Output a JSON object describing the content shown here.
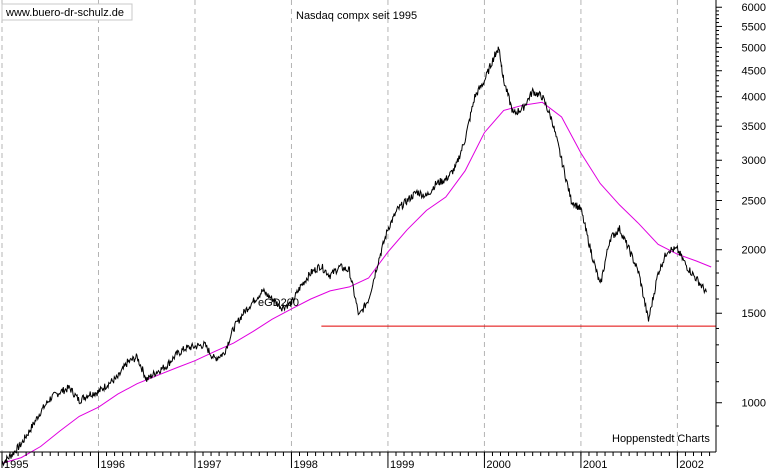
{
  "chart_data": {
    "type": "line",
    "title": "Nasdaq compx seit 1995",
    "source_label": "www.buero-dr-schulz.de",
    "credit": "Hoppenstedt Charts",
    "y_scale": "log",
    "ylim": [
      800,
      6200
    ],
    "xlim": [
      1995.0,
      2002.4
    ],
    "grid": "vertical dashed",
    "y_ticks": [
      1000,
      1500,
      2000,
      2500,
      3000,
      3500,
      4000,
      4500,
      5000,
      5500,
      6000
    ],
    "x_ticks": [
      "1995",
      "1996",
      "1997",
      "1998",
      "1999",
      "2000",
      "2001",
      "2002"
    ],
    "series": [
      {
        "name": "Nasdaq compx",
        "color": "#000000",
        "x": [
          1995.0,
          1995.1,
          1995.2,
          1995.3,
          1995.4,
          1995.5,
          1995.6,
          1995.7,
          1995.8,
          1995.9,
          1996.0,
          1996.1,
          1996.2,
          1996.3,
          1996.4,
          1996.5,
          1996.6,
          1996.7,
          1996.8,
          1996.9,
          1997.0,
          1997.1,
          1997.2,
          1997.3,
          1997.4,
          1997.5,
          1997.6,
          1997.7,
          1997.8,
          1997.9,
          1998.0,
          1998.1,
          1998.2,
          1998.3,
          1998.4,
          1998.5,
          1998.6,
          1998.7,
          1998.8,
          1998.9,
          1999.0,
          1999.1,
          1999.2,
          1999.3,
          1999.4,
          1999.5,
          1999.6,
          1999.7,
          1999.8,
          1999.9,
          2000.0,
          2000.1,
          2000.15,
          2000.2,
          2000.3,
          2000.4,
          2000.5,
          2000.6,
          2000.7,
          2000.8,
          2000.9,
          2001.0,
          2001.1,
          2001.2,
          2001.3,
          2001.4,
          2001.5,
          2001.6,
          2001.7,
          2001.8,
          2001.9,
          2002.0,
          2002.1,
          2002.2,
          2002.3
        ],
        "y": [
          760,
          790,
          830,
          890,
          960,
          1020,
          1050,
          1070,
          1010,
          1040,
          1050,
          1090,
          1120,
          1200,
          1230,
          1110,
          1150,
          1180,
          1240,
          1280,
          1290,
          1300,
          1220,
          1250,
          1400,
          1500,
          1580,
          1660,
          1600,
          1540,
          1570,
          1700,
          1800,
          1860,
          1780,
          1850,
          1820,
          1480,
          1600,
          1900,
          2200,
          2400,
          2500,
          2600,
          2550,
          2700,
          2750,
          2900,
          3300,
          4000,
          4300,
          4800,
          5000,
          4300,
          3700,
          3800,
          4100,
          4000,
          3600,
          3000,
          2500,
          2400,
          2000,
          1700,
          2100,
          2200,
          2000,
          1800,
          1450,
          1800,
          2000,
          2000,
          1850,
          1750,
          1650
        ]
      },
      {
        "name": "eGD200",
        "color": "#e000e0",
        "x": [
          1995.0,
          1995.2,
          1995.4,
          1995.6,
          1995.8,
          1996.0,
          1996.2,
          1996.4,
          1996.6,
          1996.8,
          1997.0,
          1997.2,
          1997.4,
          1997.6,
          1997.8,
          1998.0,
          1998.2,
          1998.4,
          1998.6,
          1998.8,
          1999.0,
          1999.2,
          1999.4,
          1999.6,
          1999.8,
          2000.0,
          2000.2,
          2000.4,
          2000.6,
          2000.8,
          2001.0,
          2001.2,
          2001.4,
          2001.6,
          2001.8,
          2002.0,
          2002.2,
          2002.35
        ],
        "y": [
          760,
          780,
          820,
          880,
          940,
          980,
          1040,
          1090,
          1130,
          1170,
          1210,
          1260,
          1310,
          1380,
          1460,
          1530,
          1600,
          1660,
          1690,
          1760,
          1980,
          2190,
          2390,
          2540,
          2860,
          3400,
          3760,
          3850,
          3900,
          3650,
          3100,
          2700,
          2450,
          2250,
          2050,
          1960,
          1900,
          1850
        ]
      }
    ],
    "annotations": [
      {
        "text": "eGD200",
        "color": "#e000e0"
      },
      {
        "type": "hline",
        "y": 1415,
        "x_start": 1998.31,
        "x_end": 2002.4,
        "color": "#e00000"
      }
    ]
  }
}
